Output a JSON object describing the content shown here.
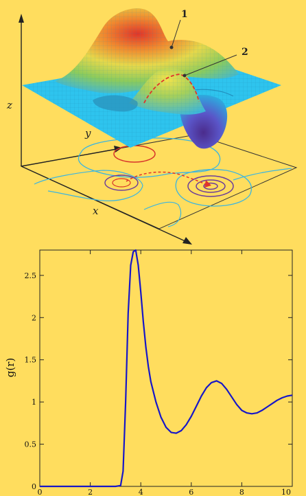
{
  "colors": {
    "background": "#FFDD5E",
    "plane": "#2EC4EE",
    "contour_cyan": "#3BB5E0",
    "contour_red": "#D7322A",
    "contour_purple": "#6B3D9A",
    "curve": "#1616C8",
    "path_dashed": "#E0332B"
  },
  "surface_plot": {
    "axis_x_label": "x",
    "axis_y_label": "y",
    "axis_z_label": "z",
    "marker_1_label": "1",
    "marker_2_label": "2"
  },
  "chart_data": {
    "type": "line",
    "title": "",
    "xlabel": "",
    "ylabel": "g(r)",
    "xlim": [
      0,
      10
    ],
    "ylim": [
      0,
      2.8
    ],
    "xticks": [
      0,
      2,
      4,
      6,
      8,
      10
    ],
    "yticks": [
      0,
      0.5,
      1,
      1.5,
      2,
      2.5
    ],
    "xtick_labels": [
      "0",
      "2",
      "4",
      "6",
      "8",
      "10"
    ],
    "ytick_labels": [
      "0",
      "0.5",
      "1",
      "1.5",
      "2",
      "2.5"
    ],
    "grid": false,
    "series": [
      {
        "x": [
          0,
          3.0,
          3.2,
          3.3,
          3.4,
          3.5,
          3.6,
          3.7,
          3.8,
          3.9,
          4.0,
          4.1,
          4.2,
          4.3,
          4.4,
          4.6,
          4.8,
          5.0,
          5.2,
          5.4,
          5.6,
          5.8,
          6.0,
          6.2,
          6.4,
          6.6,
          6.8,
          7.0,
          7.2,
          7.4,
          7.6,
          7.8,
          8.0,
          8.2,
          8.4,
          8.6,
          8.8,
          9.0,
          9.2,
          9.4,
          9.6,
          9.8,
          10.0
        ],
        "y": [
          0,
          0,
          0.01,
          0.18,
          1.0,
          2.05,
          2.62,
          2.78,
          2.8,
          2.62,
          2.3,
          1.95,
          1.65,
          1.42,
          1.24,
          1.0,
          0.82,
          0.7,
          0.64,
          0.63,
          0.66,
          0.73,
          0.83,
          0.95,
          1.07,
          1.17,
          1.23,
          1.25,
          1.22,
          1.15,
          1.06,
          0.97,
          0.9,
          0.87,
          0.86,
          0.87,
          0.9,
          0.94,
          0.98,
          1.02,
          1.05,
          1.07,
          1.08
        ]
      }
    ]
  }
}
